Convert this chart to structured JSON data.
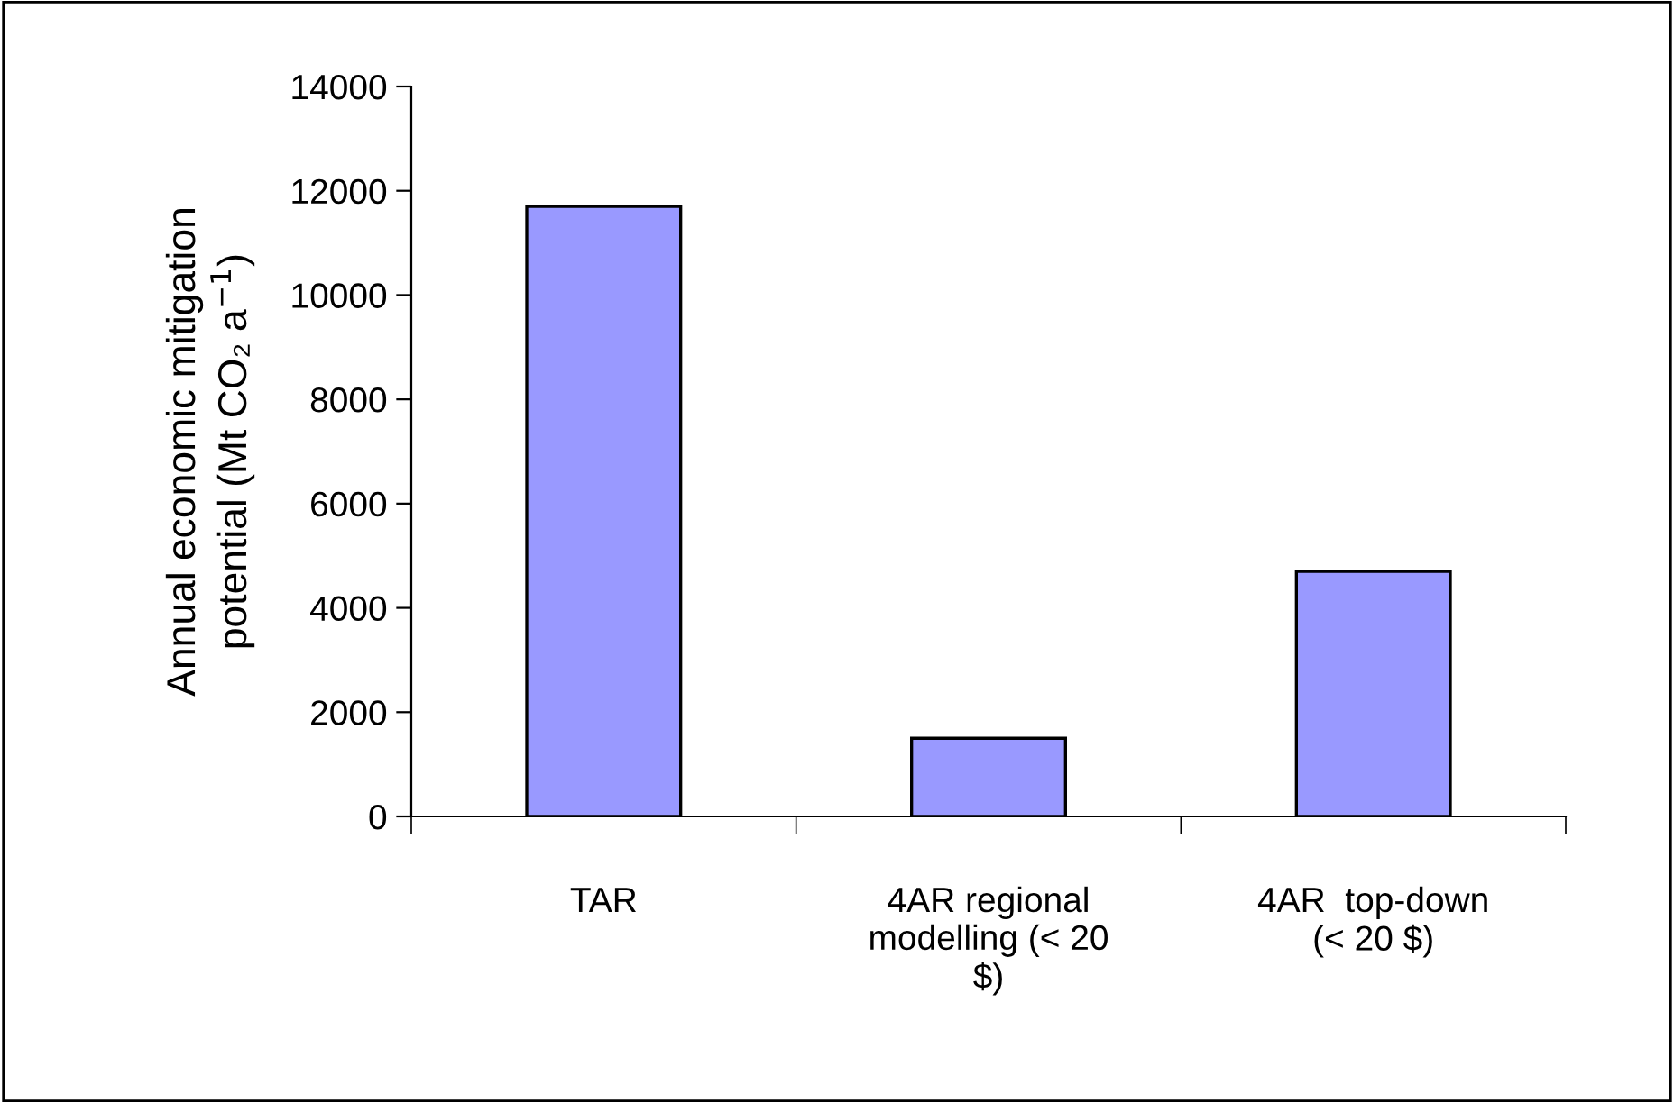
{
  "chart_data": {
    "type": "bar",
    "categories": [
      "TAR",
      "4AR regional\nmodelling (< 20\n$)",
      "4AR  top-down\n(< 20 $)"
    ],
    "values": [
      11700,
      1500,
      4700
    ],
    "color": "#9999ff",
    "ylabel": "Annual economic mitigation\npotential (Mt CO₂ a$^{−1}$)",
    "ylim": [
      0,
      14000
    ],
    "yticks": [
      0,
      2000,
      4000,
      6000,
      8000,
      10000,
      12000,
      14000
    ],
    "grid": false
  }
}
